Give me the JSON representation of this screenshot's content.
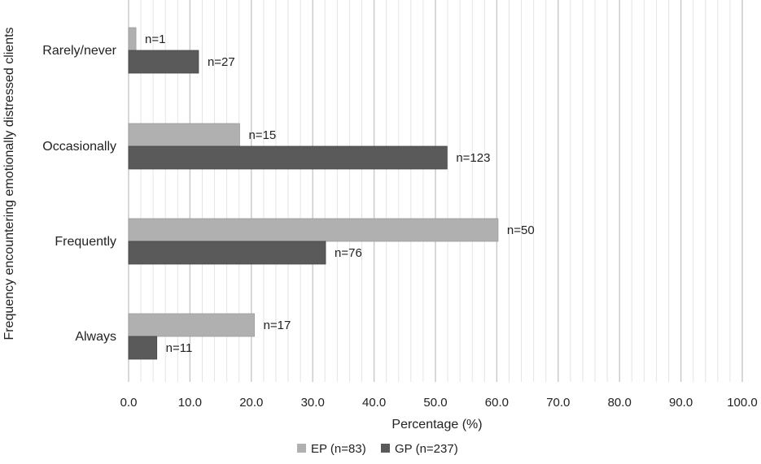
{
  "chart_data": {
    "type": "bar",
    "orientation": "horizontal",
    "categories": [
      "Rarely/never",
      "Occasionally",
      "Frequently",
      "Always"
    ],
    "series": [
      {
        "name": "EP (n=83)",
        "color": "#b0b0b0",
        "values": [
          1.2,
          18.1,
          60.2,
          20.5
        ],
        "labels": [
          "n=1",
          "n=15",
          "n=50",
          "n=17"
        ]
      },
      {
        "name": "GP (n=237)",
        "color": "#5a5a5a",
        "values": [
          11.4,
          51.9,
          32.1,
          4.6
        ],
        "labels": [
          "n=27",
          "n=123",
          "n=76",
          "n=11"
        ]
      }
    ],
    "xlabel": "Percentage (%)",
    "ylabel": "Frequency encountering emotionally distressed clients",
    "xlim": [
      0,
      100
    ],
    "major_ticks": [
      0,
      10,
      20,
      30,
      40,
      50,
      60,
      70,
      80,
      90,
      100
    ],
    "tick_labels": [
      "0.0",
      "10.0",
      "20.0",
      "30.0",
      "40.0",
      "50.0",
      "60.0",
      "70.0",
      "80.0",
      "90.0",
      "100.0"
    ],
    "minor_step": 2,
    "legend_position": "bottom-center"
  }
}
